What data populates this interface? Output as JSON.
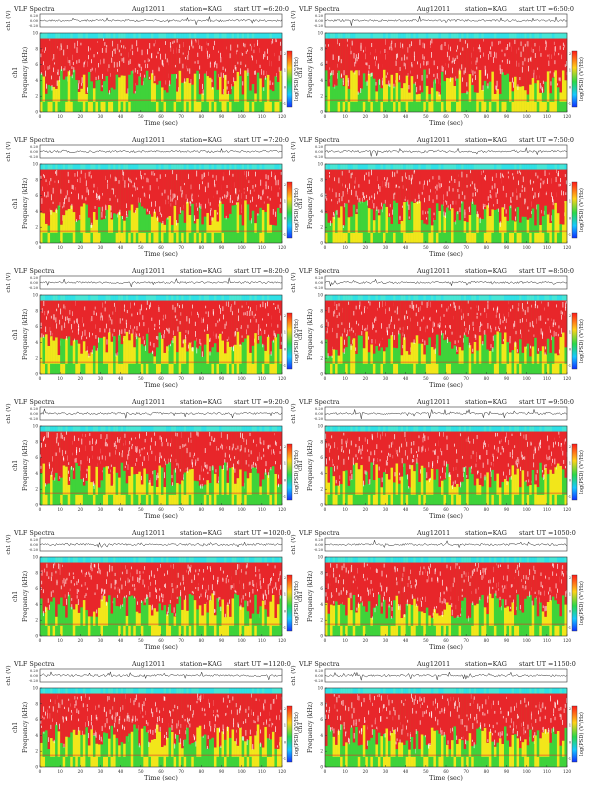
{
  "page": {
    "columns": 2,
    "rows": 6
  },
  "chart_data": [
    {
      "type": "heatmap",
      "title": "VLF Spectra",
      "date": "Aug12011",
      "station": "station=KAG",
      "start": "start UT =6:20:0",
      "xlabel": "Time (sec)",
      "ylabel": "Frequency (kHz)",
      "ch_label": "ch1",
      "wave_label": "ch1 (V)",
      "cbar_label": "log(PSD) (V²/Hz)",
      "xlim": [
        0,
        120
      ],
      "ylim": [
        0,
        10
      ],
      "xticks": [
        0,
        10,
        20,
        30,
        40,
        50,
        60,
        70,
        80,
        90,
        100,
        110,
        120
      ],
      "yticks": [
        0,
        2,
        4,
        6,
        8,
        10
      ],
      "wave_ticks": [
        "0.20",
        "0.00",
        "-0.20"
      ],
      "cbar_ticks": [
        "2",
        "1",
        "0",
        "-1"
      ]
    },
    {
      "type": "heatmap",
      "title": "VLF Spectra",
      "date": "Aug12011",
      "station": "station=KAG",
      "start": "start UT =6:50:0",
      "xlabel": "Time (sec)",
      "ylabel": "Frequency (kHz)",
      "ch_label": "ch1",
      "wave_label": "ch1 (V)",
      "cbar_label": "log(PSD) (V²/Hz)",
      "xlim": [
        0,
        120
      ],
      "ylim": [
        0,
        10
      ],
      "xticks": [
        0,
        10,
        20,
        30,
        40,
        50,
        60,
        70,
        80,
        90,
        100,
        110,
        120
      ],
      "yticks": [
        0,
        2,
        4,
        6,
        8,
        10
      ],
      "wave_ticks": [
        "0.20",
        "0.00",
        "-0.20"
      ],
      "cbar_ticks": [
        "2",
        "1",
        "0",
        "-1"
      ]
    },
    {
      "type": "heatmap",
      "title": "VLF Spectra",
      "date": "Aug12011",
      "station": "station=KAG",
      "start": "start UT =7:20:0",
      "xlabel": "Time (sec)",
      "ylabel": "Frequency (kHz)",
      "ch_label": "ch1",
      "wave_label": "ch1 (V)",
      "cbar_label": "log(PSD) (V²/Hz)",
      "xlim": [
        0,
        120
      ],
      "ylim": [
        0,
        10
      ],
      "xticks": [
        0,
        10,
        20,
        30,
        40,
        50,
        60,
        70,
        80,
        90,
        100,
        110,
        120
      ],
      "yticks": [
        0,
        2,
        4,
        6,
        8,
        10
      ],
      "wave_ticks": [
        "0.20",
        "0.00",
        "-0.20"
      ],
      "cbar_ticks": [
        "2",
        "1",
        "0",
        "-1"
      ]
    },
    {
      "type": "heatmap",
      "title": "VLF Spectra",
      "date": "Aug12011",
      "station": "station=KAG",
      "start": "start UT =7:50:0",
      "xlabel": "Time (sec)",
      "ylabel": "Frequency (kHz)",
      "ch_label": "ch1",
      "wave_label": "ch1 (V)",
      "cbar_label": "log(PSD) (V²/Hz)",
      "xlim": [
        0,
        120
      ],
      "ylim": [
        0,
        10
      ],
      "xticks": [
        0,
        10,
        20,
        30,
        40,
        50,
        60,
        70,
        80,
        90,
        100,
        110,
        120
      ],
      "yticks": [
        0,
        2,
        4,
        6,
        8,
        10
      ],
      "wave_ticks": [
        "0.20",
        "0.00",
        "-0.20"
      ],
      "cbar_ticks": [
        "2",
        "1",
        "0",
        "-1"
      ]
    },
    {
      "type": "heatmap",
      "title": "VLF Spectra",
      "date": "Aug12011",
      "station": "station=KAG",
      "start": "start UT =8:20:0",
      "xlabel": "Time (sec)",
      "ylabel": "Frequency (kHz)",
      "ch_label": "ch1",
      "wave_label": "ch1 (V)",
      "cbar_label": "log(PSD) (V²/Hz)",
      "xlim": [
        0,
        120
      ],
      "ylim": [
        0,
        10
      ],
      "xticks": [
        0,
        10,
        20,
        30,
        40,
        50,
        60,
        70,
        80,
        90,
        100,
        110,
        120
      ],
      "yticks": [
        0,
        2,
        4,
        6,
        8,
        10
      ],
      "wave_ticks": [
        "0.20",
        "0.00",
        "-0.20"
      ],
      "cbar_ticks": [
        "2",
        "1",
        "0",
        "-1"
      ]
    },
    {
      "type": "heatmap",
      "title": "VLF Spectra",
      "date": "Aug12011",
      "station": "station=KAG",
      "start": "start UT =8:50:0",
      "xlabel": "Time (sec)",
      "ylabel": "Frequency (kHz)",
      "ch_label": "ch1",
      "wave_label": "ch1 (V)",
      "cbar_label": "log(PSD) (V²/Hz)",
      "xlim": [
        0,
        120
      ],
      "ylim": [
        0,
        10
      ],
      "xticks": [
        0,
        10,
        20,
        30,
        40,
        50,
        60,
        70,
        80,
        90,
        100,
        110,
        120
      ],
      "yticks": [
        0,
        2,
        4,
        6,
        8,
        10
      ],
      "wave_ticks": [
        "0.20",
        "0.00",
        "-0.20"
      ],
      "cbar_ticks": [
        "2",
        "1",
        "0",
        "-1"
      ]
    },
    {
      "type": "heatmap",
      "title": "VLF Spectra",
      "date": "Aug12011",
      "station": "station=KAG",
      "start": "start UT =9:20:0",
      "xlabel": "Time (sec)",
      "ylabel": "Frequency (kHz)",
      "ch_label": "ch1",
      "wave_label": "ch1 (V)",
      "cbar_label": "log(PSD) (V²/Hz)",
      "xlim": [
        0,
        120
      ],
      "ylim": [
        0,
        10
      ],
      "xticks": [
        0,
        10,
        20,
        30,
        40,
        50,
        60,
        70,
        80,
        90,
        100,
        110,
        120
      ],
      "yticks": [
        0,
        2,
        4,
        6,
        8,
        10
      ],
      "wave_ticks": [
        "0.20",
        "0.00",
        "-0.20"
      ],
      "cbar_ticks": [
        "2",
        "1",
        "0",
        "-1"
      ]
    },
    {
      "type": "heatmap",
      "title": "VLF Spectra",
      "date": "Aug12011",
      "station": "station=KAG",
      "start": "start UT =9:50:0",
      "xlabel": "Time (sec)",
      "ylabel": "Frequency (kHz)",
      "ch_label": "ch1",
      "wave_label": "ch1 (V)",
      "cbar_label": "log(PSD) (V²/Hz)",
      "xlim": [
        0,
        120
      ],
      "ylim": [
        0,
        10
      ],
      "xticks": [
        0,
        10,
        20,
        30,
        40,
        50,
        60,
        70,
        80,
        90,
        100,
        110,
        120
      ],
      "yticks": [
        0,
        2,
        4,
        6,
        8,
        10
      ],
      "wave_ticks": [
        "0.20",
        "0.00",
        "-0.20"
      ],
      "cbar_ticks": [
        "2",
        "1",
        "0",
        "-1"
      ]
    },
    {
      "type": "heatmap",
      "title": "VLF Spectra",
      "date": "Aug12011",
      "station": "station=KAG",
      "start": "start UT =1020:0",
      "xlabel": "Time (sec)",
      "ylabel": "Frequency (kHz)",
      "ch_label": "ch1",
      "wave_label": "ch1 (V)",
      "cbar_label": "log(PSD) (V²/Hz)",
      "xlim": [
        0,
        120
      ],
      "ylim": [
        0,
        10
      ],
      "xticks": [
        0,
        10,
        20,
        30,
        40,
        50,
        60,
        70,
        80,
        90,
        100,
        110,
        120
      ],
      "yticks": [
        0,
        2,
        4,
        6,
        8,
        10
      ],
      "wave_ticks": [
        "0.20",
        "0.00",
        "-0.20"
      ],
      "cbar_ticks": [
        "2",
        "1",
        "0",
        "-1"
      ]
    },
    {
      "type": "heatmap",
      "title": "VLF Spectra",
      "date": "Aug12011",
      "station": "station=KAG",
      "start": "start UT =1050:0",
      "xlabel": "Time (sec)",
      "ylabel": "Frequency (kHz)",
      "ch_label": "ch1",
      "wave_label": "ch1 (V)",
      "cbar_label": "log(PSD) (V²/Hz)",
      "xlim": [
        0,
        120
      ],
      "ylim": [
        0,
        10
      ],
      "xticks": [
        0,
        10,
        20,
        30,
        40,
        50,
        60,
        70,
        80,
        90,
        100,
        110,
        120
      ],
      "yticks": [
        0,
        2,
        4,
        6,
        8,
        10
      ],
      "wave_ticks": [
        "0.20",
        "0.00",
        "-0.20"
      ],
      "cbar_ticks": [
        "2",
        "1",
        "0",
        "-1"
      ]
    },
    {
      "type": "heatmap",
      "title": "VLF Spectra",
      "date": "Aug12011",
      "station": "station=KAG",
      "start": "start UT =1120:0",
      "xlabel": "Time (sec)",
      "ylabel": "Frequency (kHz)",
      "ch_label": "ch1",
      "wave_label": "ch1 (V)",
      "cbar_label": "log(PSD) (V²/Hz)",
      "xlim": [
        0,
        120
      ],
      "ylim": [
        0,
        10
      ],
      "xticks": [
        0,
        10,
        20,
        30,
        40,
        50,
        60,
        70,
        80,
        90,
        100,
        110,
        120
      ],
      "yticks": [
        0,
        2,
        4,
        6,
        8,
        10
      ],
      "wave_ticks": [
        "0.20",
        "0.00",
        "-0.20"
      ],
      "cbar_ticks": [
        "2",
        "1",
        "0",
        "-1"
      ]
    },
    {
      "type": "heatmap",
      "title": "VLF Spectra",
      "date": "Aug12011",
      "station": "station=KAG",
      "start": "start UT =1150:0",
      "xlabel": "Time (sec)",
      "ylabel": "Frequency (kHz)",
      "ch_label": "ch1",
      "wave_label": "ch1 (V)",
      "cbar_label": "log(PSD) (V²/Hz)",
      "xlim": [
        0,
        120
      ],
      "ylim": [
        0,
        10
      ],
      "xticks": [
        0,
        10,
        20,
        30,
        40,
        50,
        60,
        70,
        80,
        90,
        100,
        110,
        120
      ],
      "yticks": [
        0,
        2,
        4,
        6,
        8,
        10
      ],
      "wave_ticks": [
        "0.20",
        "0.00",
        "-0.20"
      ],
      "cbar_ticks": [
        "2",
        "1",
        "0",
        "-1"
      ]
    }
  ],
  "colors": {
    "strong": "#e8262a",
    "mid": "#f2e61a",
    "weak": "#3fd33a",
    "low": "#46e6d6",
    "band_top": "#2fe0e6",
    "speckle": "#ffffff",
    "waveform": "#222222",
    "colorbar_stops": [
      "#ff1a1a",
      "#ffd21a",
      "#2ad84a",
      "#18c8ff",
      "#1030ff"
    ]
  }
}
